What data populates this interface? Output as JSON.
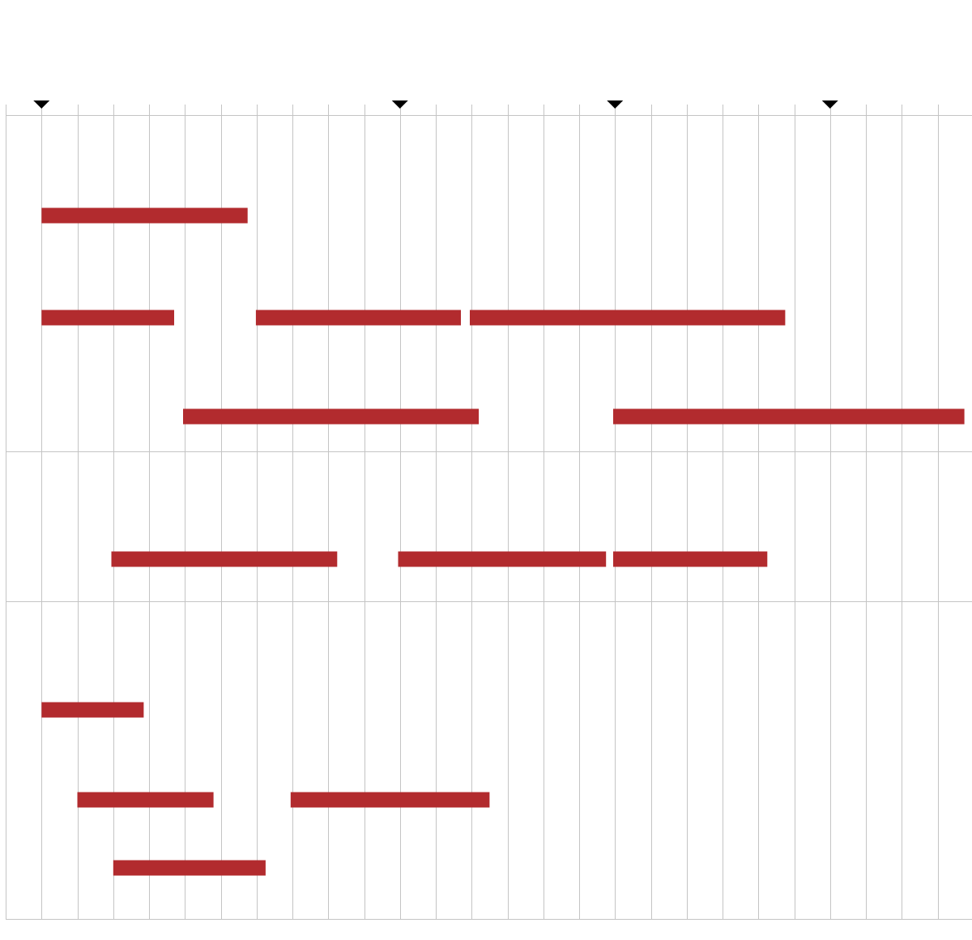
{
  "colors": {
    "bar": "#b22b2e",
    "grid": "#c4c4c4",
    "marker": "#000000",
    "background": "#ffffff"
  },
  "timeline": {
    "columns": 26,
    "markers_at_columns": [
      1,
      11,
      17,
      23
    ],
    "sections": [
      {
        "rows": [
          {
            "bars": [
              {
                "start": 1.0,
                "end": 6.75
              }
            ]
          },
          {
            "bars": [
              {
                "start": 1.0,
                "end": 4.7
              },
              {
                "start": 6.98,
                "end": 12.7
              },
              {
                "start": 12.95,
                "end": 21.75
              }
            ]
          },
          {
            "bars": [
              {
                "start": 4.95,
                "end": 13.2
              },
              {
                "start": 16.95,
                "end": 26.75
              }
            ]
          }
        ]
      },
      {
        "rows": [
          {
            "bars": [
              {
                "start": 2.95,
                "end": 9.25
              },
              {
                "start": 10.95,
                "end": 16.75
              },
              {
                "start": 16.95,
                "end": 21.25
              }
            ]
          }
        ]
      },
      {
        "rows": [
          {
            "bars": [
              {
                "start": 1.0,
                "end": 3.85
              }
            ]
          },
          {
            "bars": [
              {
                "start": 2.0,
                "end": 5.8
              },
              {
                "start": 7.95,
                "end": 13.5
              }
            ]
          },
          {
            "bars": [
              {
                "start": 3.0,
                "end": 7.25
              }
            ]
          }
        ]
      }
    ]
  }
}
